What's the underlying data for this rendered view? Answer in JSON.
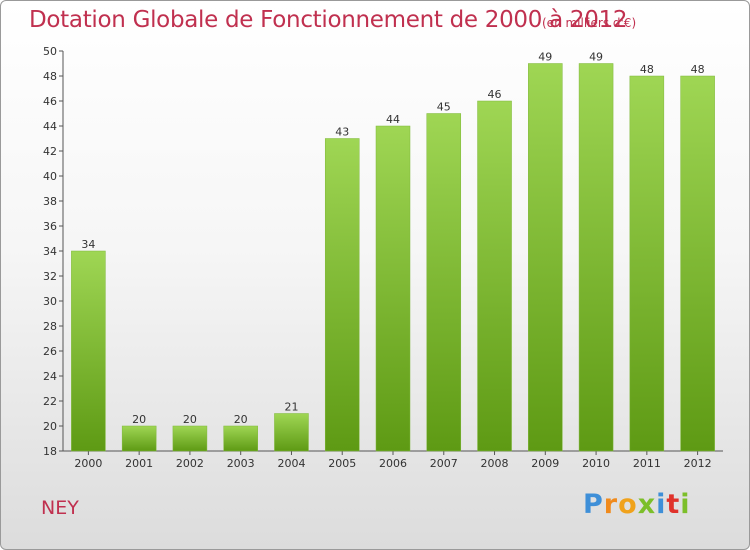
{
  "title": "Dotation Globale de Fonctionnement de 2000 à 2012",
  "unit_note": "(en milliers d'€)",
  "place_label": "NEY",
  "brand_logo": "Proxiti",
  "colors": {
    "title": "#c0304f",
    "bar_light": "#9fd654",
    "bar_dark": "#5e9a14"
  },
  "chart_data": {
    "type": "bar",
    "categories": [
      "2000",
      "2001",
      "2002",
      "2003",
      "2004",
      "2005",
      "2006",
      "2007",
      "2008",
      "2009",
      "2010",
      "2011",
      "2012"
    ],
    "values": [
      34,
      20,
      20,
      20,
      21,
      43,
      44,
      45,
      46,
      49,
      49,
      48,
      48
    ],
    "title": "Dotation Globale de Fonctionnement de 2000 à 2012",
    "subtitle": "(en milliers d'€)",
    "xlabel": "",
    "ylabel": "",
    "ylim": [
      18,
      50
    ],
    "yticks": [
      18,
      20,
      22,
      24,
      26,
      28,
      30,
      32,
      34,
      36,
      38,
      40,
      42,
      44,
      46,
      48,
      50
    ],
    "grid": false,
    "data_labels": true
  }
}
